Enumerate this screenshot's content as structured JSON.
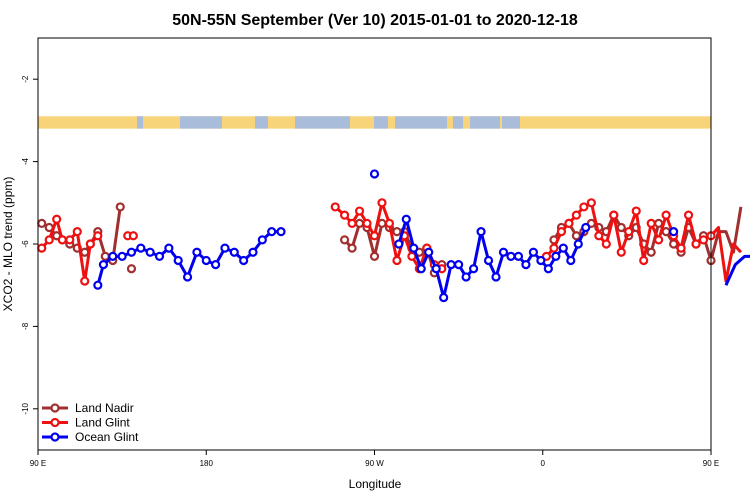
{
  "chart_data": {
    "type": "line",
    "title": "50N-55N September (Ver 10)   2015-01-01 to 2020-12-18",
    "xlabel": "Longitude",
    "ylabel": "XCO2 - MLO trend (ppm)",
    "xlim": [
      90,
      450
    ],
    "ylim": [
      -11,
      -1
    ],
    "x_ticks": [
      {
        "value": 90,
        "label": "90 E"
      },
      {
        "value": 180,
        "label": "180"
      },
      {
        "value": 270,
        "label": "90 W"
      },
      {
        "value": 360,
        "label": "0"
      },
      {
        "value": 450,
        "label": "90 E"
      },
      {
        "value": 540,
        "label": "180"
      }
    ],
    "y_ticks": [
      -10,
      -8,
      -6,
      -4,
      -2
    ],
    "grid": false,
    "legend_position": "bottom-left",
    "land_ocean_strip": {
      "y_range": [
        -3.2,
        -2.9
      ],
      "land_color": "#f7d47a",
      "ocean_color": "#a9bcd9"
    },
    "series": [
      {
        "name": "Land Nadir",
        "color": "#a0302f",
        "segments": [
          [
            [
              92,
              -5.5
            ],
            [
              96,
              -5.6
            ],
            [
              100,
              -5.8
            ],
            [
              103,
              -5.9
            ],
            [
              107,
              -6.0
            ],
            [
              111,
              -6.1
            ],
            [
              115,
              -6.2
            ],
            [
              118,
              -6.0
            ],
            [
              122,
              -5.7
            ],
            [
              126,
              -6.3
            ],
            [
              130,
              -6.4
            ],
            [
              134,
              -5.1
            ]
          ],
          [
            [
              140,
              -6.6
            ]
          ],
          [
            [
              254,
              -5.9
            ],
            [
              258,
              -6.1
            ],
            [
              262,
              -5.5
            ],
            [
              266,
              -5.6
            ],
            [
              270,
              -6.3
            ],
            [
              274,
              -5.5
            ],
            [
              278,
              -5.6
            ],
            [
              282,
              -5.7
            ],
            [
              286,
              -5.7
            ],
            [
              290,
              -6.1
            ],
            [
              294,
              -6.2
            ],
            [
              298,
              -6.1
            ],
            [
              302,
              -6.7
            ],
            [
              306,
              -6.5
            ]
          ],
          [
            [
              366,
              -5.9
            ],
            [
              370,
              -5.6
            ],
            [
              374,
              -5.5
            ],
            [
              378,
              -5.8
            ],
            [
              382,
              -5.7
            ],
            [
              386,
              -5.5
            ],
            [
              390,
              -5.6
            ],
            [
              394,
              -5.7
            ],
            [
              398,
              -5.3
            ],
            [
              402,
              -5.6
            ],
            [
              406,
              -5.8
            ],
            [
              410,
              -5.6
            ],
            [
              414,
              -6.0
            ],
            [
              418,
              -6.2
            ],
            [
              422,
              -5.5
            ],
            [
              426,
              -5.7
            ],
            [
              430,
              -6.0
            ],
            [
              434,
              -6.2
            ],
            [
              438,
              -5.6
            ],
            [
              442,
              -6.0
            ],
            [
              446,
              -5.8
            ],
            [
              450,
              -6.4
            ],
            [
              454,
              -5.7
            ],
            [
              458,
              -5.7
            ],
            [
              462,
              -6.2
            ],
            [
              466,
              -5.1
            ]
          ],
          [
            [
              476,
              -6.6
            ]
          ]
        ]
      },
      {
        "name": "Land Glint",
        "color": "#ee1111",
        "segments": [
          [
            [
              92,
              -6.1
            ],
            [
              96,
              -5.9
            ],
            [
              100,
              -5.4
            ],
            [
              103,
              -5.9
            ],
            [
              107,
              -5.9
            ],
            [
              111,
              -5.7
            ],
            [
              115,
              -6.9
            ],
            [
              118,
              -6.0
            ],
            [
              122,
              -5.8
            ]
          ],
          [
            [
              138,
              -5.8
            ],
            [
              141,
              -5.8
            ]
          ],
          [
            [
              249,
              -5.1
            ],
            [
              254,
              -5.3
            ],
            [
              258,
              -5.5
            ],
            [
              262,
              -5.2
            ],
            [
              266,
              -5.5
            ],
            [
              270,
              -5.8
            ],
            [
              274,
              -5.0
            ],
            [
              278,
              -5.5
            ],
            [
              282,
              -6.4
            ],
            [
              286,
              -5.8
            ],
            [
              290,
              -6.3
            ],
            [
              294,
              -6.6
            ],
            [
              298,
              -6.1
            ],
            [
              302,
              -6.5
            ],
            [
              306,
              -6.6
            ]
          ],
          [
            [
              362,
              -6.3
            ],
            [
              366,
              -6.1
            ],
            [
              370,
              -5.7
            ],
            [
              374,
              -5.5
            ],
            [
              378,
              -5.3
            ],
            [
              382,
              -5.1
            ],
            [
              386,
              -5.0
            ],
            [
              390,
              -5.8
            ],
            [
              394,
              -6.0
            ],
            [
              398,
              -5.3
            ],
            [
              402,
              -6.2
            ],
            [
              406,
              -5.7
            ],
            [
              410,
              -5.2
            ],
            [
              414,
              -6.4
            ],
            [
              418,
              -5.5
            ],
            [
              422,
              -5.9
            ],
            [
              426,
              -5.3
            ],
            [
              430,
              -5.8
            ],
            [
              434,
              -6.1
            ],
            [
              438,
              -5.3
            ],
            [
              442,
              -6.0
            ],
            [
              446,
              -5.9
            ],
            [
              450,
              -5.8
            ],
            [
              454,
              -5.6
            ],
            [
              458,
              -6.9
            ],
            [
              462,
              -6.0
            ],
            [
              466,
              -6.2
            ]
          ],
          [
            [
              473,
              -5.8
            ],
            [
              476,
              -5.7
            ]
          ]
        ]
      },
      {
        "name": "Ocean Glint",
        "color": "#0000ee",
        "segments": [
          [
            [
              122,
              -7.0
            ],
            [
              125,
              -6.5
            ],
            [
              130,
              -6.3
            ],
            [
              135,
              -6.3
            ],
            [
              140,
              -6.2
            ],
            [
              145,
              -6.1
            ],
            [
              150,
              -6.2
            ],
            [
              155,
              -6.3
            ],
            [
              160,
              -6.1
            ],
            [
              165,
              -6.4
            ],
            [
              170,
              -6.8
            ],
            [
              175,
              -6.2
            ],
            [
              180,
              -6.4
            ],
            [
              185,
              -6.5
            ],
            [
              190,
              -6.1
            ],
            [
              195,
              -6.2
            ],
            [
              200,
              -6.4
            ],
            [
              205,
              -6.2
            ],
            [
              210,
              -5.9
            ],
            [
              215,
              -5.7
            ],
            [
              220,
              -5.7
            ]
          ],
          [
            [
              270,
              -4.3
            ]
          ],
          [
            [
              283,
              -6.0
            ],
            [
              287,
              -5.4
            ],
            [
              291,
              -6.1
            ],
            [
              295,
              -6.6
            ],
            [
              299,
              -6.2
            ],
            [
              303,
              -6.6
            ],
            [
              307,
              -7.3
            ],
            [
              311,
              -6.5
            ],
            [
              315,
              -6.5
            ],
            [
              319,
              -6.8
            ],
            [
              323,
              -6.6
            ],
            [
              327,
              -5.7
            ],
            [
              331,
              -6.4
            ],
            [
              335,
              -6.8
            ],
            [
              339,
              -6.2
            ],
            [
              343,
              -6.3
            ],
            [
              347,
              -6.3
            ],
            [
              351,
              -6.5
            ],
            [
              355,
              -6.2
            ],
            [
              359,
              -6.4
            ],
            [
              363,
              -6.6
            ],
            [
              367,
              -6.3
            ],
            [
              371,
              -6.1
            ],
            [
              375,
              -6.4
            ],
            [
              379,
              -6.0
            ],
            [
              383,
              -5.6
            ]
          ],
          [
            [
              430,
              -5.7
            ]
          ],
          [
            [
              458,
              -7.0
            ],
            [
              463,
              -6.5
            ],
            [
              468,
              -6.3
            ],
            [
              473,
              -6.3
            ],
            [
              478,
              -6.2
            ],
            [
              483,
              -6.1
            ],
            [
              488,
              -6.2
            ],
            [
              493,
              -6.3
            ],
            [
              497,
              -6.1
            ]
          ]
        ]
      }
    ]
  }
}
